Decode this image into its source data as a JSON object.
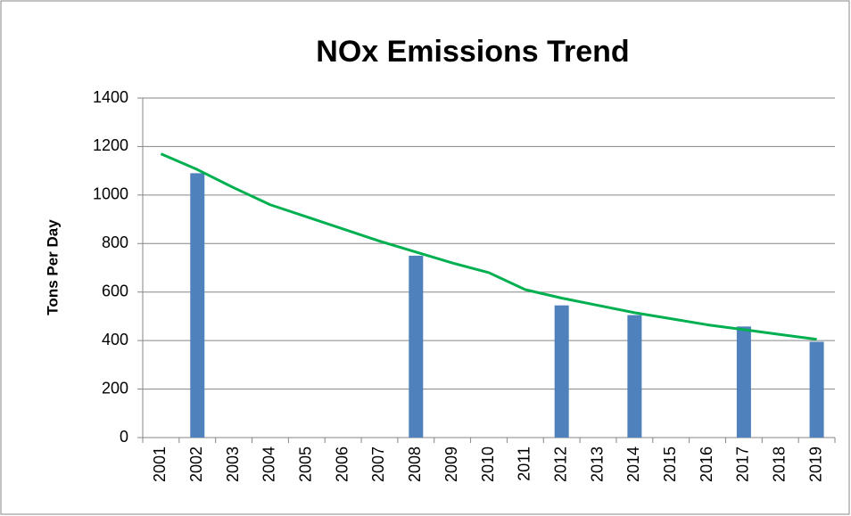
{
  "chart_data": {
    "type": "bar",
    "title": "NOx Emissions Trend",
    "y_label": "Tons Per Day",
    "categories": [
      "2001",
      "2002",
      "2003",
      "2004",
      "2005",
      "2006",
      "2007",
      "2008",
      "2009",
      "2010",
      "2011",
      "2012",
      "2013",
      "2014",
      "2015",
      "2016",
      "2017",
      "2018",
      "2019"
    ],
    "series": [
      {
        "type": "bar",
        "color": "#4f81bd",
        "values": [
          null,
          1090,
          null,
          null,
          null,
          null,
          null,
          750,
          null,
          null,
          null,
          545,
          null,
          505,
          null,
          null,
          458,
          null,
          395
        ]
      },
      {
        "type": "line",
        "color": "#00b050",
        "values": [
          1170,
          1105,
          1030,
          960,
          910,
          860,
          810,
          765,
          720,
          680,
          610,
          575,
          545,
          515,
          490,
          465,
          445,
          425,
          405
        ]
      }
    ],
    "ylim": [
      0,
      1400
    ],
    "yticks": [
      0,
      200,
      400,
      600,
      800,
      1000,
      1200,
      1400
    ],
    "grid": true
  }
}
